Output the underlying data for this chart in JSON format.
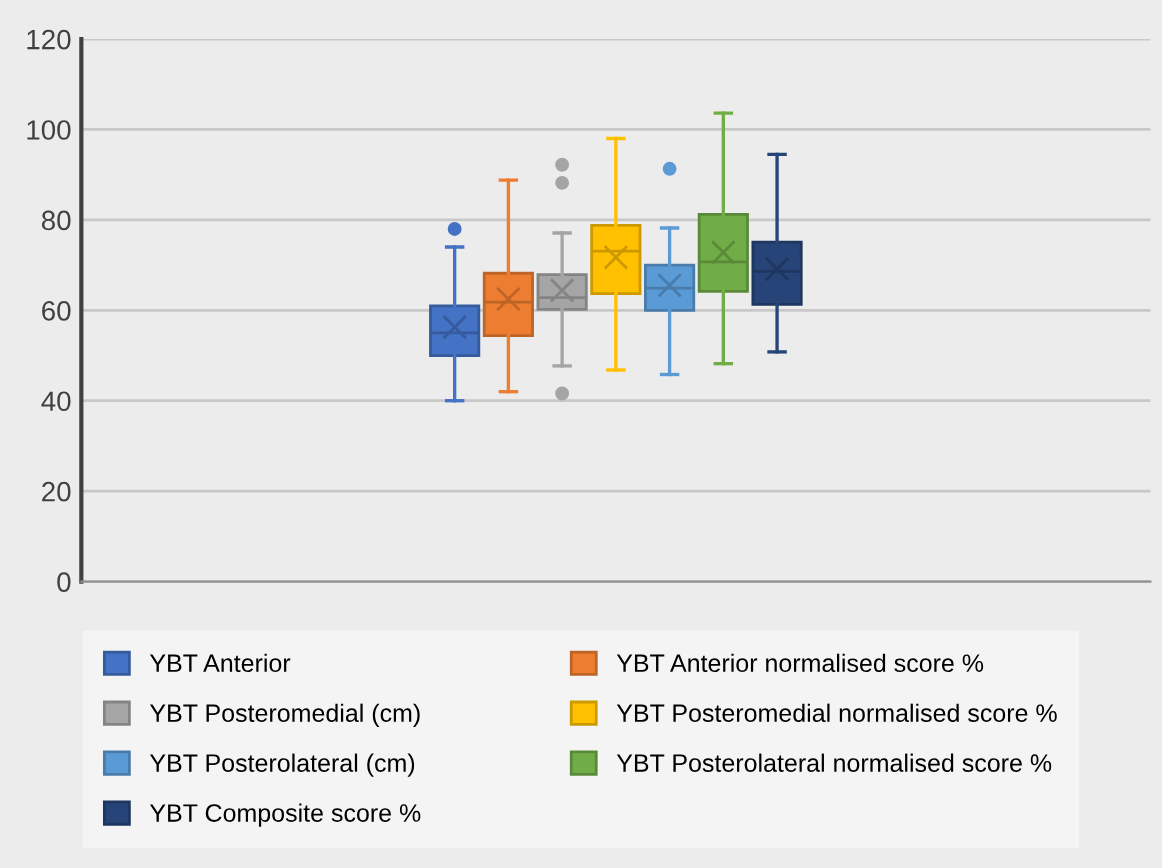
{
  "chart_data": {
    "type": "box",
    "categories": [
      null
    ],
    "ylim": [
      0,
      120
    ],
    "yticks": [
      0,
      20,
      40,
      60,
      80,
      100,
      120
    ],
    "grid": "y",
    "legend": "bottom",
    "series": [
      {
        "name": "YBT Anterior",
        "color": "#4472c4",
        "boxes": [
          {
            "low": 40,
            "q1": 50,
            "median": 55,
            "q3": 61,
            "high": 74,
            "mean": 56.3,
            "outliers": [
              78
            ]
          }
        ]
      },
      {
        "name": "YBT Anterior normalised score %",
        "color": "#ed7d31",
        "boxes": [
          {
            "low": 42,
            "q1": 54.4,
            "median": 61.8,
            "q3": 68.2,
            "high": 88.8,
            "mean": 62.5
          }
        ]
      },
      {
        "name": "YBT Posteromedial (cm)",
        "color": "#a5a5a5",
        "boxes": [
          {
            "low": 47.7,
            "q1": 60.2,
            "median": 62.8,
            "q3": 67.9,
            "high": 77.1,
            "mean": 64.4,
            "outliers": [
              92.2,
              88.2,
              41.6
            ]
          }
        ]
      },
      {
        "name": "YBT Posteromedial normalised score %",
        "color": "#ffc000",
        "boxes": [
          {
            "low": 46.8,
            "q1": 63.7,
            "median": 73.1,
            "q3": 78.8,
            "high": 98,
            "mean": 71.7
          }
        ]
      },
      {
        "name": "YBT Posterolateral (cm)",
        "color": "#5b9bd5",
        "boxes": [
          {
            "low": 45.8,
            "q1": 60,
            "median": 64.9,
            "q3": 70,
            "high": 78.2,
            "mean": 65.5,
            "outliers": [
              91.3
            ]
          }
        ]
      },
      {
        "name": "YBT Posterolateral normalised score %",
        "color": "#70ad47",
        "boxes": [
          {
            "low": 48.2,
            "q1": 64.2,
            "median": 70.7,
            "q3": 81.2,
            "high": 103.6,
            "mean": 72.8
          }
        ]
      },
      {
        "name": "YBT Composite score %",
        "color": "#264478",
        "boxes": [
          {
            "low": 50.8,
            "q1": 61.3,
            "median": 68.6,
            "q3": 75.1,
            "high": 94.5,
            "mean": 69.1
          }
        ]
      }
    ]
  }
}
